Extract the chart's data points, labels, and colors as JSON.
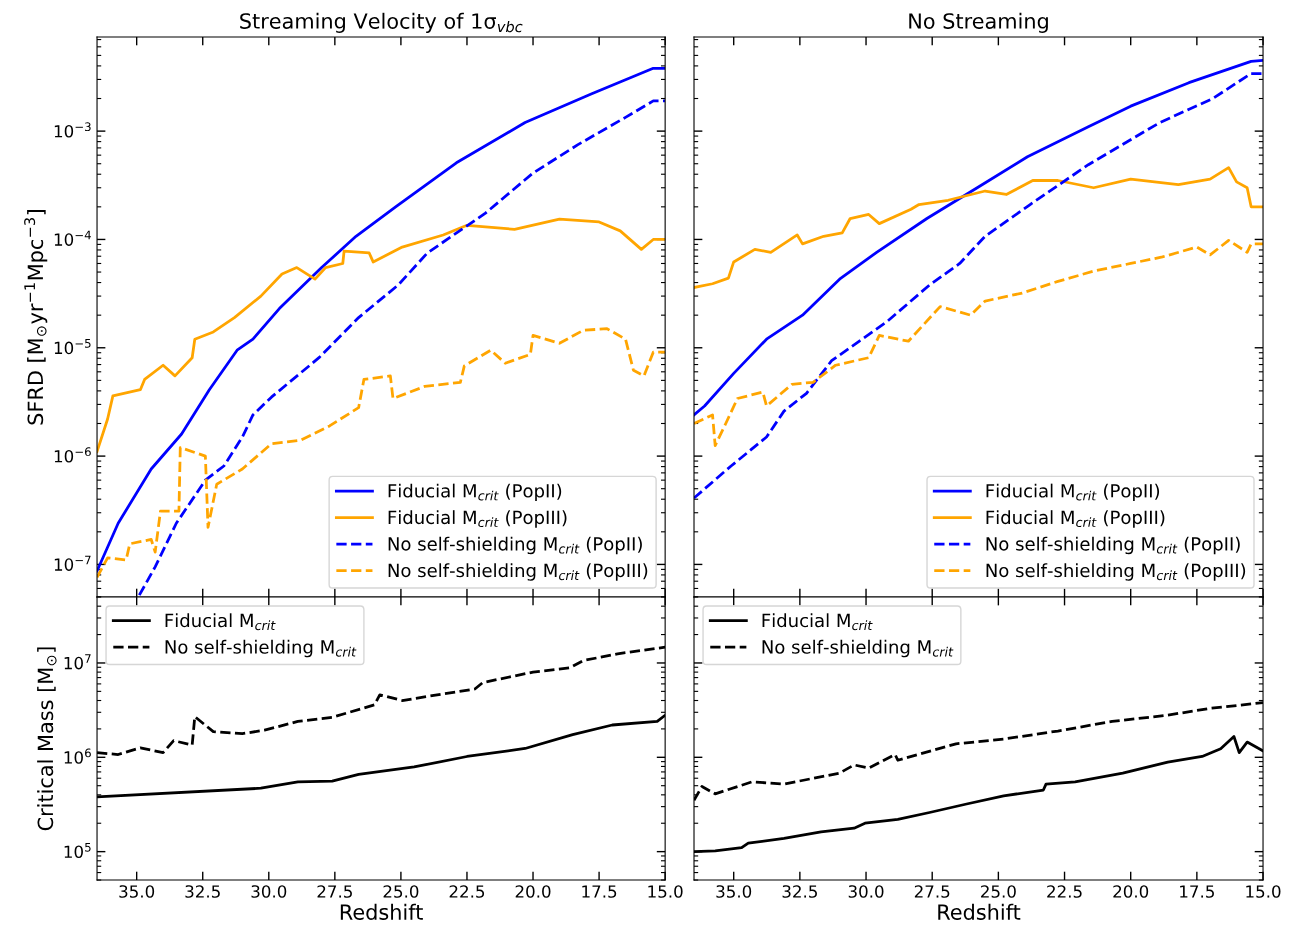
{
  "chart_data": [
    {
      "type": "line",
      "title": "Streaming Velocity of 1σ$_{vbc}$",
      "ylabel": "SFRD [M$_{⊙}$yr$^{−1}$Mpc$^{−3}$]",
      "log": "y",
      "grid": false,
      "legend": "bottom right",
      "tick_labels": "y",
      "xlim": [
        36.5,
        15
      ],
      "xticks": [
        {
          "value": 35,
          "label": null
        },
        {
          "value": 32.5,
          "label": null
        },
        {
          "value": 30,
          "label": null
        },
        {
          "value": 27.5,
          "label": null
        },
        {
          "value": 25,
          "label": null
        },
        {
          "value": 22.5,
          "label": null
        },
        {
          "value": 20,
          "label": null
        },
        {
          "value": 17.5,
          "label": null
        },
        {
          "value": 15,
          "label": null
        }
      ],
      "ylim": [
        5e-08,
        0.0074
      ],
      "yticks": [
        {
          "value": 1e-07,
          "label": "10$^{−7}$"
        },
        {
          "value": 1e-06,
          "label": "10$^{−6}$"
        },
        {
          "value": 1e-05,
          "label": "10$^{−5}$"
        },
        {
          "value": 0.0001,
          "label": "10$^{−4}$"
        },
        {
          "value": 0.001,
          "label": "10$^{−3}$"
        }
      ],
      "series": [
        {
          "name": "Fiducial M$_{crit}$ (PopII)",
          "color": "#0000ff",
          "line_style": "solid",
          "x": [
            36.5,
            35.7,
            34.45,
            33.3,
            32.25,
            31.2,
            30.6,
            29.6,
            28.0,
            26.7,
            25.2,
            22.9,
            20.3,
            17.8,
            15.45,
            15.0
          ],
          "values": [
            8.7e-08,
            2.4e-07,
            7.6e-07,
            1.6e-06,
            4.1e-06,
            9.5e-06,
            1.2e-05,
            2.3e-05,
            5.5e-05,
            0.000107,
            0.0002,
            0.00051,
            0.0012,
            0.0022,
            0.0038,
            0.0038
          ]
        },
        {
          "name": "Fiducial M$_{crit}$ (PopIII)",
          "color": "#ffa500",
          "line_style": "solid",
          "x": [
            36.5,
            36.1,
            35.9,
            34.86,
            34.7,
            34.0,
            33.55,
            32.9,
            32.8,
            32.1,
            31.3,
            30.3,
            29.5,
            28.94,
            28.25,
            27.85,
            27.2,
            27.15,
            26.2,
            26.05,
            24.95,
            23.4,
            22.5,
            20.7,
            19.0,
            17.5,
            16.7,
            15.9,
            15.45,
            15.0
          ],
          "values": [
            1.1e-06,
            2.2e-06,
            3.6e-06,
            4.1e-06,
            5.1e-06,
            6.9e-06,
            5.5e-06,
            8.1e-06,
            1.2e-05,
            1.4e-05,
            1.9e-05,
            3e-05,
            4.8e-05,
            5.5e-05,
            4.3e-05,
            5.5e-05,
            6e-05,
            7.8e-05,
            7.5e-05,
            6.2e-05,
            8.5e-05,
            0.00011,
            0.000135,
            0.000124,
            0.000154,
            0.000145,
            0.00012,
            8.1e-05,
            0.0001,
            0.0001
          ]
        },
        {
          "name": "No self-shielding M$_{crit}$ (PopII)",
          "color": "#0000ff",
          "line_style": "dashed",
          "x": [
            34.9,
            34.3,
            33.5,
            32.4,
            31.7,
            31.0,
            30.6,
            29.9,
            28.1,
            26.6,
            25.1,
            24.0,
            21.8,
            20.0,
            18.3,
            16.5,
            15.45,
            15.0
          ],
          "values": [
            5.2e-08,
            9.5e-08,
            2.4e-07,
            6e-07,
            8.1e-07,
            1.5e-06,
            2.4e-06,
            3.5e-06,
            8.1e-06,
            1.9e-05,
            3.8e-05,
            7.5e-05,
            0.000175,
            0.00041,
            0.00075,
            0.00134,
            0.0019,
            0.0019
          ]
        },
        {
          "name": "No self-shielding M$_{crit}$ (PopIII)",
          "color": "#ffa500",
          "line_style": "dashed",
          "x": [
            36.5,
            36.1,
            35.4,
            35.26,
            34.45,
            34.3,
            34.1,
            33.4,
            33.35,
            32.4,
            32.3,
            31.97,
            31.0,
            29.9,
            28.8,
            27.7,
            26.6,
            26.4,
            25.4,
            25.3,
            24.1,
            22.75,
            22.6,
            21.6,
            21.05,
            20.1,
            20.0,
            19.0,
            18.1,
            17.2,
            16.5,
            16.2,
            15.8,
            15.45,
            15.0
          ],
          "values": [
            7.6e-08,
            1.15e-07,
            1.1e-07,
            1.55e-07,
            1.7e-07,
            1.3e-07,
            3.1e-07,
            3.1e-07,
            1.2e-06,
            1e-06,
            2.2e-07,
            5.5e-07,
            7.6e-07,
            1.3e-06,
            1.4e-06,
            1.9e-06,
            2.8e-06,
            5.1e-06,
            5.5e-06,
            3.4e-06,
            4.4e-06,
            4.8e-06,
            6.8e-06,
            9.5e-06,
            7.2e-06,
            8.7e-06,
            1.3e-05,
            1.1e-05,
            1.45e-05,
            1.5e-05,
            1.2e-05,
            6.2e-06,
            5.5e-06,
            9.1e-06,
            9.1e-06
          ]
        }
      ]
    },
    {
      "type": "line",
      "title": "No Streaming",
      "log": "y",
      "grid": false,
      "legend": "bottom right",
      "tick_labels": false,
      "xlim": [
        36.5,
        15
      ],
      "xticks": [
        {
          "value": 35,
          "label": null
        },
        {
          "value": 32.5,
          "label": null
        },
        {
          "value": 30,
          "label": null
        },
        {
          "value": 27.5,
          "label": null
        },
        {
          "value": 25,
          "label": null
        },
        {
          "value": 22.5,
          "label": null
        },
        {
          "value": 20,
          "label": null
        },
        {
          "value": 17.5,
          "label": null
        },
        {
          "value": 15,
          "label": null
        }
      ],
      "ylim": [
        5e-08,
        0.0074
      ],
      "yticks": [
        {
          "value": 1e-07,
          "label": null
        },
        {
          "value": 1e-06,
          "label": null
        },
        {
          "value": 1e-05,
          "label": null
        },
        {
          "value": 0.0001,
          "label": null
        },
        {
          "value": 0.001,
          "label": null
        }
      ],
      "series": [
        {
          "name": "Fiducial M$_{crit}$ (PopII)",
          "color": "#0000ff",
          "line_style": "solid",
          "x": [
            36.5,
            36.1,
            35.0,
            33.76,
            32.4,
            31.0,
            29.6,
            27.7,
            25.8,
            23.9,
            21.6,
            20.0,
            17.8,
            15.45,
            15.0
          ],
          "values": [
            2.4e-06,
            2.9e-06,
            5.8e-06,
            1.2e-05,
            2e-05,
            4.3e-05,
            7.6e-05,
            0.000156,
            0.0003,
            0.00058,
            0.0011,
            0.0017,
            0.0028,
            0.0044,
            0.0045
          ]
        },
        {
          "name": "Fiducial M$_{crit}$ (PopIII)",
          "color": "#ffa500",
          "line_style": "solid",
          "x": [
            36.5,
            35.8,
            35.2,
            35.0,
            34.2,
            33.6,
            32.6,
            32.4,
            31.6,
            30.9,
            30.6,
            29.9,
            29.5,
            28.3,
            28.0,
            26.9,
            25.5,
            24.7,
            23.7,
            22.75,
            21.4,
            20.0,
            18.2,
            17.0,
            16.3,
            16.0,
            15.6,
            15.45,
            15.0
          ],
          "values": [
            3.6e-05,
            3.9e-05,
            4.4e-05,
            6.2e-05,
            8.1e-05,
            7.6e-05,
            0.00011,
            9.1e-05,
            0.000107,
            0.000115,
            0.000156,
            0.00017,
            0.00014,
            0.00019,
            0.00021,
            0.00023,
            0.00028,
            0.00026,
            0.00035,
            0.00035,
            0.0003,
            0.00036,
            0.00032,
            0.00036,
            0.00046,
            0.00034,
            0.0003,
            0.0002,
            0.0002
          ]
        },
        {
          "name": "No self-shielding M$_{crit}$ (PopII)",
          "color": "#0000ff",
          "line_style": "dashed",
          "x": [
            36.5,
            35.1,
            33.76,
            33.1,
            32.25,
            31.3,
            29.2,
            27.6,
            26.46,
            25.5,
            23.8,
            21.6,
            18.9,
            16.9,
            15.45,
            15.0
          ],
          "values": [
            4.1e-07,
            8.1e-07,
            1.5e-06,
            2.6e-06,
            3.8e-06,
            7.6e-06,
            1.75e-05,
            3.8e-05,
            6e-05,
            0.000107,
            0.00021,
            0.00049,
            0.0012,
            0.002,
            0.0034,
            0.0034
          ]
        },
        {
          "name": "No self-shielding M$_{crit}$ (PopIII)",
          "color": "#ffa500",
          "line_style": "dashed",
          "x": [
            36.5,
            35.8,
            35.7,
            35.3,
            34.86,
            33.9,
            33.76,
            32.8,
            32.0,
            31.15,
            29.9,
            29.5,
            28.4,
            27.2,
            26.05,
            25.5,
            24.1,
            22.75,
            21.4,
            20.0,
            18.8,
            17.5,
            17.0,
            16.3,
            15.6,
            15.45,
            15.0
          ],
          "values": [
            2e-06,
            2.4e-06,
            1.25e-06,
            2e-06,
            3.4e-06,
            3.9e-06,
            2.9e-06,
            4.6e-06,
            4.8e-06,
            6.9e-06,
            8.1e-06,
            1.3e-05,
            1.15e-05,
            2.4e-05,
            2e-05,
            2.7e-05,
            3.2e-05,
            4.1e-05,
            5.1e-05,
            6e-05,
            6.9e-05,
            8.5e-05,
            7.2e-05,
            9.8e-05,
            7.6e-05,
            9.1e-05,
            9.1e-05
          ]
        }
      ]
    },
    {
      "type": "line",
      "xlabel": "Redshift",
      "ylabel": "Critical Mass [M$_{⊙}$]",
      "log": "y",
      "grid": false,
      "legend": "top left",
      "xlim": [
        36.5,
        15
      ],
      "xticks": [
        {
          "value": 35,
          "label": "35.0"
        },
        {
          "value": 32.5,
          "label": "32.5"
        },
        {
          "value": 30,
          "label": "30.0"
        },
        {
          "value": 27.5,
          "label": "27.5"
        },
        {
          "value": 25,
          "label": "25.0"
        },
        {
          "value": 22.5,
          "label": "22.5"
        },
        {
          "value": 20,
          "label": "20.0"
        },
        {
          "value": 17.5,
          "label": "17.5"
        },
        {
          "value": 15,
          "label": "15.0"
        }
      ],
      "ylim": [
        50000.0,
        50000000.0
      ],
      "yticks": [
        {
          "value": 100000.0,
          "label": "10$^{5}$"
        },
        {
          "value": 1000000.0,
          "label": "10$^{6}$"
        },
        {
          "value": 10000000.0,
          "label": "10$^{7}$"
        }
      ],
      "series": [
        {
          "name": "Fiducial M$_{crit}$",
          "color": "#000000",
          "line_style": "solid",
          "x": [
            36.5,
            30.3,
            28.9,
            27.6,
            26.6,
            24.5,
            22.5,
            20.3,
            18.5,
            17.0,
            15.3,
            15.03
          ],
          "values": [
            380000.0,
            470000.0,
            550000.0,
            560000.0,
            660000.0,
            790000.0,
            1020000.0,
            1240000.0,
            1740000.0,
            2200000.0,
            2400000.0,
            2750000.0
          ]
        },
        {
          "name": "No self-shielding M$_{crit}$",
          "color": "#000000",
          "line_style": "dashed",
          "x": [
            36.5,
            35.7,
            34.86,
            34.0,
            33.6,
            32.9,
            32.8,
            32.1,
            31.0,
            30.16,
            28.9,
            27.6,
            26.0,
            25.8,
            24.95,
            23.4,
            22.2,
            21.9,
            20.0,
            18.6,
            18.1,
            16.8,
            15.0
          ],
          "values": [
            1120000.0,
            1070000.0,
            1260000.0,
            1120000.0,
            1500000.0,
            1350000.0,
            2700000.0,
            1870000.0,
            1780000.0,
            1940000.0,
            2400000.0,
            2650000.0,
            3600000.0,
            4600000.0,
            4000000.0,
            4700000.0,
            5300000.0,
            6200000.0,
            8000000.0,
            8900000.0,
            10600000.0,
            12500000.0,
            14700000.0
          ]
        }
      ]
    },
    {
      "type": "line",
      "xlabel": "Redshift",
      "log": "y",
      "grid": false,
      "legend": "top left",
      "tick_labels": "x",
      "xlim": [
        36.5,
        15
      ],
      "xticks": [
        {
          "value": 35,
          "label": "35.0"
        },
        {
          "value": 32.5,
          "label": "32.5"
        },
        {
          "value": 30,
          "label": "30.0"
        },
        {
          "value": 27.5,
          "label": "27.5"
        },
        {
          "value": 25,
          "label": "25.0"
        },
        {
          "value": 22.5,
          "label": "22.5"
        },
        {
          "value": 20,
          "label": "20.0"
        },
        {
          "value": 17.5,
          "label": "17.5"
        },
        {
          "value": 15,
          "label": "15.0"
        }
      ],
      "ylim": [
        50000.0,
        50000000.0
      ],
      "yticks": [
        {
          "value": 100000.0,
          "label": null
        },
        {
          "value": 1000000.0,
          "label": null
        },
        {
          "value": 10000000.0,
          "label": null
        }
      ],
      "series": [
        {
          "name": "Fiducial M$_{crit}$",
          "color": "#000000",
          "line_style": "solid",
          "x": [
            36.5,
            35.7,
            34.7,
            34.45,
            33.1,
            31.7,
            30.45,
            30.04,
            28.8,
            27.6,
            26.2,
            24.8,
            23.3,
            23.2,
            22.1,
            20.3,
            18.6,
            17.3,
            16.6,
            16.1,
            15.9,
            15.6,
            15.0
          ],
          "values": [
            100000.0,
            102000.0,
            110000.0,
            123000.0,
            138000.0,
            162000.0,
            177000.0,
            200000.0,
            220000.0,
            260000.0,
            320000.0,
            390000.0,
            450000.0,
            520000.0,
            550000.0,
            680000.0,
            890000.0,
            1020000.0,
            1230000.0,
            1660000.0,
            1120000.0,
            1450000.0,
            1170000.0
          ]
        },
        {
          "name": "No self-shielding M$_{crit}$",
          "color": "#000000",
          "line_style": "dashed",
          "x": [
            36.5,
            36.2,
            35.7,
            34.3,
            33.1,
            31.0,
            30.45,
            29.9,
            28.9,
            28.8,
            26.6,
            24.8,
            22.75,
            20.7,
            18.6,
            17.0,
            15.0
          ],
          "values": [
            350000.0,
            490000.0,
            410000.0,
            550000.0,
            520000.0,
            680000.0,
            830000.0,
            770000.0,
            1070000.0,
            930000.0,
            1390000.0,
            1560000.0,
            1900000.0,
            2400000.0,
            2800000.0,
            3300000.0,
            3800000.0
          ]
        }
      ]
    }
  ]
}
